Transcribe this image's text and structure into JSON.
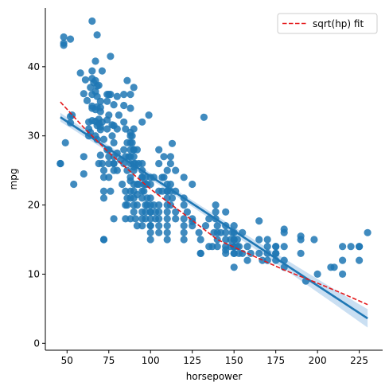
{
  "chart_data": {
    "type": "scatter",
    "title": "",
    "xlabel": "horsepower",
    "ylabel": "mpg",
    "xlim": [
      37,
      239
    ],
    "ylim": [
      -1,
      48.5
    ],
    "x_ticks": [
      50,
      75,
      100,
      125,
      150,
      175,
      200,
      225
    ],
    "y_ticks": [
      0,
      10,
      20,
      30,
      40
    ],
    "grid": false,
    "legend_position": "top-right",
    "legend": [
      "sqrt(hp) fit"
    ],
    "colors": {
      "points": "#1f77b4",
      "regression": "#1f77b4",
      "confidence_band": "#9ec5e8",
      "sqrt_fit": "#e41a1c"
    },
    "series": [
      {
        "kind": "scatter",
        "points": [
          [
            46,
            26
          ],
          [
            46,
            26
          ],
          [
            48,
            44.3
          ],
          [
            48,
            43.1
          ],
          [
            48,
            43.4
          ],
          [
            49,
            29
          ],
          [
            52,
            44
          ],
          [
            52,
            31.9
          ],
          [
            52,
            32.8
          ],
          [
            53,
            33
          ],
          [
            54,
            23
          ],
          [
            58,
            39.1
          ],
          [
            60,
            36.1
          ],
          [
            60,
            24.5
          ],
          [
            60,
            27
          ],
          [
            61,
            38.1
          ],
          [
            62,
            35.1
          ],
          [
            63,
            30
          ],
          [
            63,
            31
          ],
          [
            63,
            32
          ],
          [
            64,
            30.5
          ],
          [
            64,
            37
          ],
          [
            65,
            36
          ],
          [
            65,
            34.3
          ],
          [
            65,
            32.2
          ],
          [
            65,
            38.3
          ],
          [
            65,
            39.4
          ],
          [
            65,
            46.6
          ],
          [
            65,
            34
          ],
          [
            66,
            37.7
          ],
          [
            67,
            36.4
          ],
          [
            67,
            30
          ],
          [
            67,
            38
          ],
          [
            67,
            40.8
          ],
          [
            67,
            33.8
          ],
          [
            67,
            32.1
          ],
          [
            68,
            44.6
          ],
          [
            68,
            37.2
          ],
          [
            68,
            31.5
          ],
          [
            68,
            35.7
          ],
          [
            68,
            34.2
          ],
          [
            68,
            29.5
          ],
          [
            69,
            37.3
          ],
          [
            69,
            32.4
          ],
          [
            69,
            31.8
          ],
          [
            69,
            26
          ],
          [
            70,
            30.9
          ],
          [
            70,
            33.5
          ],
          [
            70,
            31.3
          ],
          [
            70,
            34.1
          ],
          [
            70,
            35
          ],
          [
            70,
            27.2
          ],
          [
            71,
            39.4
          ],
          [
            71,
            32
          ],
          [
            71,
            26
          ],
          [
            72,
            29.5
          ],
          [
            72,
            25
          ],
          [
            72,
            24
          ],
          [
            72,
            22
          ],
          [
            72,
            21
          ],
          [
            72,
            15
          ],
          [
            72,
            15
          ],
          [
            74,
            36
          ],
          [
            74,
            35
          ],
          [
            74,
            32.3
          ],
          [
            74,
            31
          ],
          [
            74,
            28
          ],
          [
            75,
            26
          ],
          [
            75,
            36
          ],
          [
            75,
            33
          ],
          [
            75,
            28
          ],
          [
            75,
            27
          ],
          [
            75,
            24
          ],
          [
            76,
            22
          ],
          [
            76,
            41.5
          ],
          [
            76,
            36
          ],
          [
            77,
            30
          ],
          [
            77,
            31.6
          ],
          [
            78,
            26
          ],
          [
            78,
            25
          ],
          [
            78,
            29
          ],
          [
            78,
            27
          ],
          [
            78,
            31.5
          ],
          [
            78,
            18
          ],
          [
            78,
            34.5
          ],
          [
            78,
            26
          ],
          [
            80,
            25
          ],
          [
            80,
            31
          ],
          [
            80,
            27.5
          ],
          [
            80,
            35.7
          ],
          [
            81,
            33
          ],
          [
            82,
            26.5
          ],
          [
            83,
            23
          ],
          [
            84,
            34.4
          ],
          [
            84,
            36
          ],
          [
            84,
            32
          ],
          [
            84,
            28
          ],
          [
            84,
            26
          ],
          [
            85,
            22
          ],
          [
            85,
            27
          ],
          [
            85,
            31
          ],
          [
            85,
            18
          ],
          [
            85,
            20
          ],
          [
            86,
            29
          ],
          [
            86,
            25
          ],
          [
            86,
            20
          ],
          [
            86,
            38
          ],
          [
            86,
            21
          ],
          [
            87,
            27
          ],
          [
            88,
            28
          ],
          [
            88,
            22
          ],
          [
            88,
            24
          ],
          [
            88,
            27
          ],
          [
            88,
            30
          ],
          [
            88,
            23.5
          ],
          [
            88,
            18
          ],
          [
            88,
            36
          ],
          [
            88,
            34
          ],
          [
            88,
            26
          ],
          [
            88,
            21
          ],
          [
            88,
            29
          ],
          [
            88,
            30.5
          ],
          [
            89,
            30
          ],
          [
            89,
            29
          ],
          [
            90,
            23
          ],
          [
            90,
            28
          ],
          [
            90,
            25
          ],
          [
            90,
            20
          ],
          [
            90,
            19
          ],
          [
            90,
            31
          ],
          [
            90,
            37
          ],
          [
            90,
            25.5
          ],
          [
            90,
            22
          ],
          [
            90,
            21
          ],
          [
            90,
            26
          ],
          [
            90,
            27
          ],
          [
            90,
            28
          ],
          [
            91,
            18
          ],
          [
            91,
            26
          ],
          [
            92,
            23
          ],
          [
            92,
            21.5
          ],
          [
            92,
            28
          ],
          [
            92,
            20
          ],
          [
            92,
            17
          ],
          [
            93,
            26
          ],
          [
            93,
            23
          ],
          [
            95,
            26
          ],
          [
            95,
            22
          ],
          [
            95,
            25
          ],
          [
            95,
            24
          ],
          [
            95,
            17
          ],
          [
            95,
            18
          ],
          [
            95,
            21
          ],
          [
            95,
            19
          ],
          [
            95,
            24
          ],
          [
            95,
            32
          ],
          [
            96,
            23
          ],
          [
            96,
            22
          ],
          [
            97,
            24
          ],
          [
            97,
            19
          ],
          [
            97,
            18
          ],
          [
            97,
            23
          ],
          [
            97,
            20
          ],
          [
            98,
            23
          ],
          [
            98,
            21
          ],
          [
            98,
            20
          ],
          [
            99,
            33
          ],
          [
            100,
            19
          ],
          [
            100,
            18
          ],
          [
            100,
            16
          ],
          [
            100,
            15
          ],
          [
            100,
            17
          ],
          [
            100,
            19
          ],
          [
            100,
            21
          ],
          [
            100,
            20
          ],
          [
            100,
            23
          ],
          [
            100,
            17
          ],
          [
            100,
            24
          ],
          [
            102,
            24
          ],
          [
            102,
            20
          ],
          [
            103,
            19
          ],
          [
            103,
            18
          ],
          [
            105,
            28
          ],
          [
            105,
            17
          ],
          [
            105,
            16
          ],
          [
            105,
            18
          ],
          [
            105,
            20
          ],
          [
            105,
            22
          ],
          [
            105,
            19
          ],
          [
            105,
            26
          ],
          [
            107,
            24
          ],
          [
            107,
            22
          ],
          [
            108,
            27
          ],
          [
            108,
            24
          ],
          [
            110,
            20
          ],
          [
            110,
            15
          ],
          [
            110,
            17
          ],
          [
            110,
            19
          ],
          [
            110,
            18
          ],
          [
            110,
            16
          ],
          [
            110,
            21
          ],
          [
            110,
            22
          ],
          [
            110,
            25
          ],
          [
            110,
            23
          ],
          [
            110,
            22
          ],
          [
            112,
            26
          ],
          [
            112,
            27
          ],
          [
            112,
            23
          ],
          [
            112,
            22
          ],
          [
            112,
            20
          ],
          [
            113,
            21
          ],
          [
            113,
            28.9
          ],
          [
            115,
            22
          ],
          [
            115,
            19
          ],
          [
            115,
            25
          ],
          [
            115,
            18
          ],
          [
            120,
            16
          ],
          [
            120,
            15
          ],
          [
            120,
            17
          ],
          [
            120,
            20
          ],
          [
            120,
            18
          ],
          [
            120,
            21
          ],
          [
            120,
            24
          ],
          [
            122,
            19
          ],
          [
            125,
            23
          ],
          [
            125,
            17
          ],
          [
            125,
            18
          ],
          [
            125,
            17.6
          ],
          [
            129,
            16
          ],
          [
            130,
            13
          ],
          [
            130,
            13
          ],
          [
            130,
            15
          ],
          [
            132,
            32.7
          ],
          [
            133,
            17
          ],
          [
            135,
            14
          ],
          [
            135,
            18
          ],
          [
            137,
            14
          ],
          [
            138,
            16
          ],
          [
            139,
            20
          ],
          [
            139,
            19
          ],
          [
            139,
            18
          ],
          [
            140,
            14
          ],
          [
            140,
            17
          ],
          [
            140,
            15
          ],
          [
            140,
            16
          ],
          [
            142,
            16
          ],
          [
            145,
            19
          ],
          [
            145,
            15
          ],
          [
            145,
            16
          ],
          [
            145,
            13
          ],
          [
            145,
            14
          ],
          [
            145,
            17
          ],
          [
            145,
            13.5
          ],
          [
            148,
            15
          ],
          [
            148,
            14
          ],
          [
            149,
            16
          ],
          [
            150,
            15
          ],
          [
            150,
            11
          ],
          [
            150,
            14
          ],
          [
            150,
            13
          ],
          [
            150,
            14
          ],
          [
            150,
            15
          ],
          [
            150,
            13
          ],
          [
            150,
            14
          ],
          [
            150,
            16
          ],
          [
            150,
            17
          ],
          [
            152,
            14
          ],
          [
            152,
            15
          ],
          [
            153,
            13
          ],
          [
            153,
            14
          ],
          [
            155,
            13
          ],
          [
            155,
            16
          ],
          [
            158,
            14
          ],
          [
            158,
            12
          ],
          [
            160,
            13
          ],
          [
            165,
            15
          ],
          [
            165,
            13
          ],
          [
            165,
            17.7
          ],
          [
            167,
            12
          ],
          [
            170,
            13
          ],
          [
            170,
            12
          ],
          [
            170,
            15
          ],
          [
            170,
            14
          ],
          [
            175,
            13
          ],
          [
            175,
            14
          ],
          [
            175,
            12
          ],
          [
            175,
            13
          ],
          [
            175,
            14
          ],
          [
            180,
            16.5
          ],
          [
            180,
            11
          ],
          [
            180,
            14
          ],
          [
            180,
            16
          ],
          [
            180,
            12
          ],
          [
            190,
            15
          ],
          [
            190,
            15.5
          ],
          [
            190,
            13
          ],
          [
            193,
            9
          ],
          [
            198,
            15
          ],
          [
            200,
            10
          ],
          [
            208,
            11
          ],
          [
            210,
            11
          ],
          [
            215,
            14
          ],
          [
            215,
            12
          ],
          [
            215,
            10
          ],
          [
            220,
            14
          ],
          [
            225,
            14
          ],
          [
            225,
            12
          ],
          [
            225,
            14
          ],
          [
            230,
            16
          ]
        ]
      },
      {
        "kind": "line",
        "style": "solid",
        "x": [
          46,
          230
        ],
        "y": [
          32.7,
          3.6
        ]
      },
      {
        "kind": "line",
        "name": "sqrt(hp) fit",
        "style": "dashed",
        "x": [
          46,
          60,
          75,
          90,
          100,
          120,
          140,
          160,
          180,
          200,
          215,
          230
        ],
        "y": [
          34.9,
          31.2,
          27.6,
          24.4,
          22.3,
          18.7,
          15.0,
          12.8,
          10.6,
          8.7,
          7.2,
          5.6
        ]
      }
    ]
  }
}
